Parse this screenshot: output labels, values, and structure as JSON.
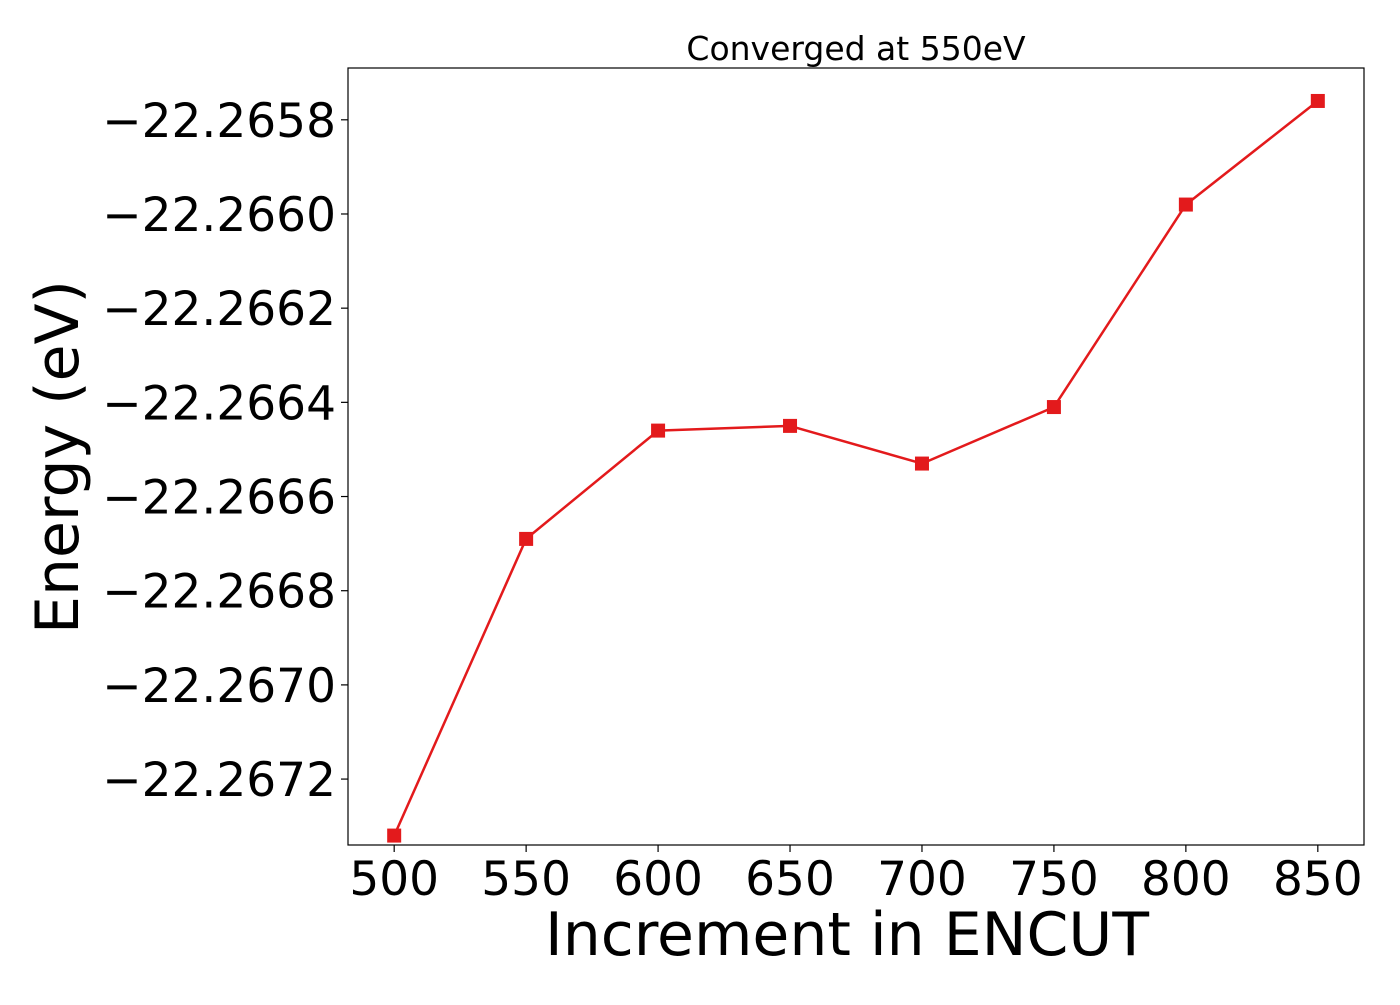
{
  "chart_data": {
    "type": "line",
    "title": "Converged at 550eV",
    "xlabel": "Increment in ENCUT",
    "ylabel": "Energy (eV)",
    "x": [
      500,
      550,
      600,
      650,
      700,
      750,
      800,
      850
    ],
    "series": [
      {
        "values": [
          -22.26732,
          -22.26669,
          -22.26646,
          -22.26645,
          -22.26653,
          -22.26641,
          -22.26598,
          -22.26576
        ],
        "color": "#e31a1c",
        "marker": "square"
      }
    ],
    "xticks": [
      500,
      550,
      600,
      650,
      700,
      750,
      800,
      850
    ],
    "xtick_labels": [
      "500",
      "550",
      "600",
      "650",
      "700",
      "750",
      "800",
      "850"
    ],
    "yticks": [
      -22.2672,
      -22.267,
      -22.2668,
      -22.2666,
      -22.2664,
      -22.2662,
      -22.266,
      -22.2658
    ],
    "ytick_labels": [
      "−22.2672",
      "−22.2670",
      "−22.2668",
      "−22.2666",
      "−22.2664",
      "−22.2662",
      "−22.2660",
      "−22.2658"
    ],
    "xlim": [
      482.5,
      867.5
    ],
    "ylim": [
      -22.26734,
      -22.26569
    ],
    "grid": false,
    "legend": false
  }
}
